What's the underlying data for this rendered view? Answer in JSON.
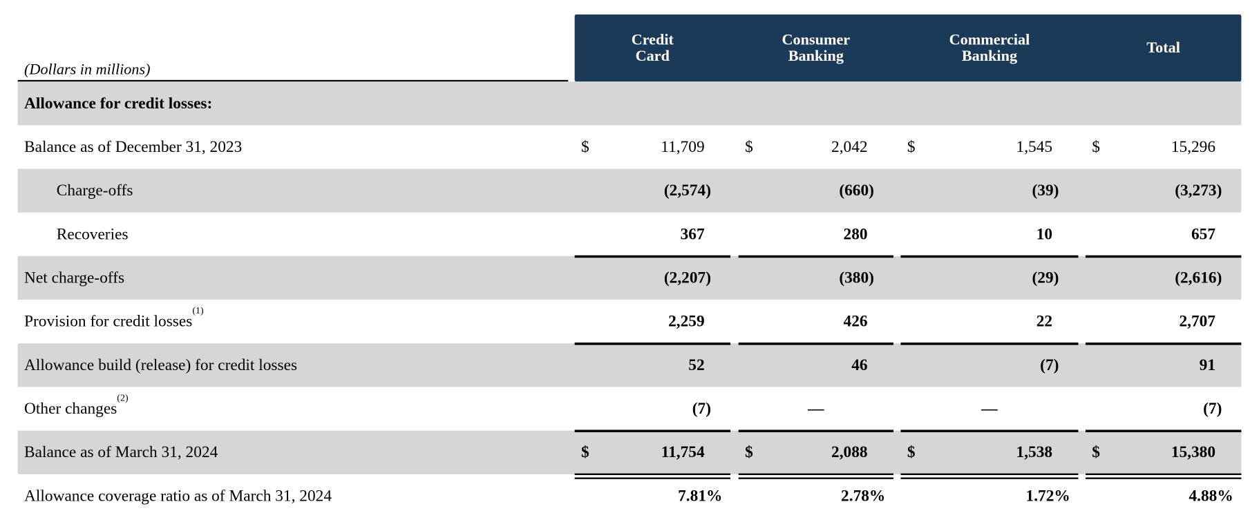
{
  "header": {
    "units": "(Dollars in millions)",
    "columns": [
      "Credit\nCard",
      "Consumer\nBanking",
      "Commercial\nBanking",
      "Total"
    ],
    "bg_color": "#1a3a57"
  },
  "rows": [
    {
      "label": "Allowance for credit losses:",
      "section": true,
      "values": []
    },
    {
      "label": "Balance as of  December 31, 2023",
      "dollar": true,
      "bold": false,
      "values": [
        "11,709",
        "2,042",
        "1,545",
        "15,296"
      ]
    },
    {
      "label": "Charge-offs",
      "indent": true,
      "bold": true,
      "values": [
        "(2,574)",
        "(660)",
        "(39)",
        "(3,273)"
      ]
    },
    {
      "label": "Recoveries",
      "indent": true,
      "bold": true,
      "values": [
        "367",
        "280",
        "10",
        "657"
      ]
    },
    {
      "label": "Net charge-offs",
      "bold": true,
      "values": [
        "(2,207)",
        "(380)",
        "(29)",
        "(2,616)"
      ]
    },
    {
      "label": "Provision for credit losses",
      "sup": "(1)",
      "bold": true,
      "values": [
        "2,259",
        "426",
        "22",
        "2,707"
      ]
    },
    {
      "label": "Allowance build (release) for credit losses",
      "bold": true,
      "values": [
        "52",
        "46",
        "(7)",
        "91"
      ]
    },
    {
      "label": "Other changes",
      "sup": "(2)",
      "bold": true,
      "values": [
        "(7)",
        "—",
        "—",
        "(7)"
      ]
    },
    {
      "label": "Balance as of March 31, 2024",
      "dollar": true,
      "bold": true,
      "values": [
        "11,754",
        "2,088",
        "1,538",
        "15,380"
      ]
    },
    {
      "label": "Allowance coverage ratio as of March 31, 2024",
      "bold": true,
      "pct": true,
      "values": [
        "7.81%",
        "2.78%",
        "1.72%",
        "4.88%"
      ]
    }
  ],
  "currency_symbol": "$"
}
